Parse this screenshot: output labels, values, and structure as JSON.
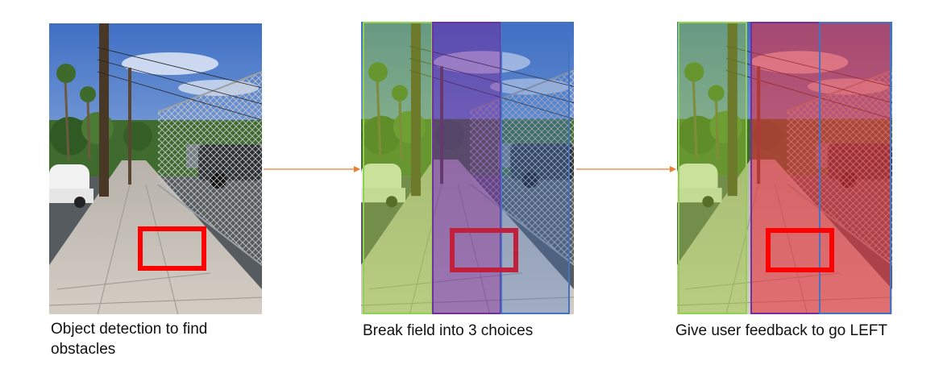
{
  "panels": [
    {
      "caption": "Object detection to find obstacles",
      "zones": []
    },
    {
      "caption": "Break field into 3 choices",
      "zones": [
        {
          "name": "left",
          "fill": "#9acd32",
          "border": "#92d050",
          "opacity": 0.45
        },
        {
          "name": "center",
          "fill": "#7030a0",
          "border": "#7030a0",
          "opacity": 0.55
        },
        {
          "name": "right",
          "fill": "#4472c4",
          "border": "#4472c4",
          "opacity": 0.35
        }
      ]
    },
    {
      "caption": "Give user feedback to go LEFT",
      "zones": [
        {
          "name": "left",
          "fill": "#9acd32",
          "border": "#92d050",
          "opacity": 0.45
        },
        {
          "name": "center",
          "fill": "#e8303a",
          "border": "#7030a0",
          "opacity": 0.6
        },
        {
          "name": "right",
          "fill": "#e8303a",
          "border": "#4472c4",
          "opacity": 0.6
        }
      ]
    }
  ],
  "colors": {
    "arrow": "#ed7d31",
    "obstacle_box": "#ff0000"
  }
}
